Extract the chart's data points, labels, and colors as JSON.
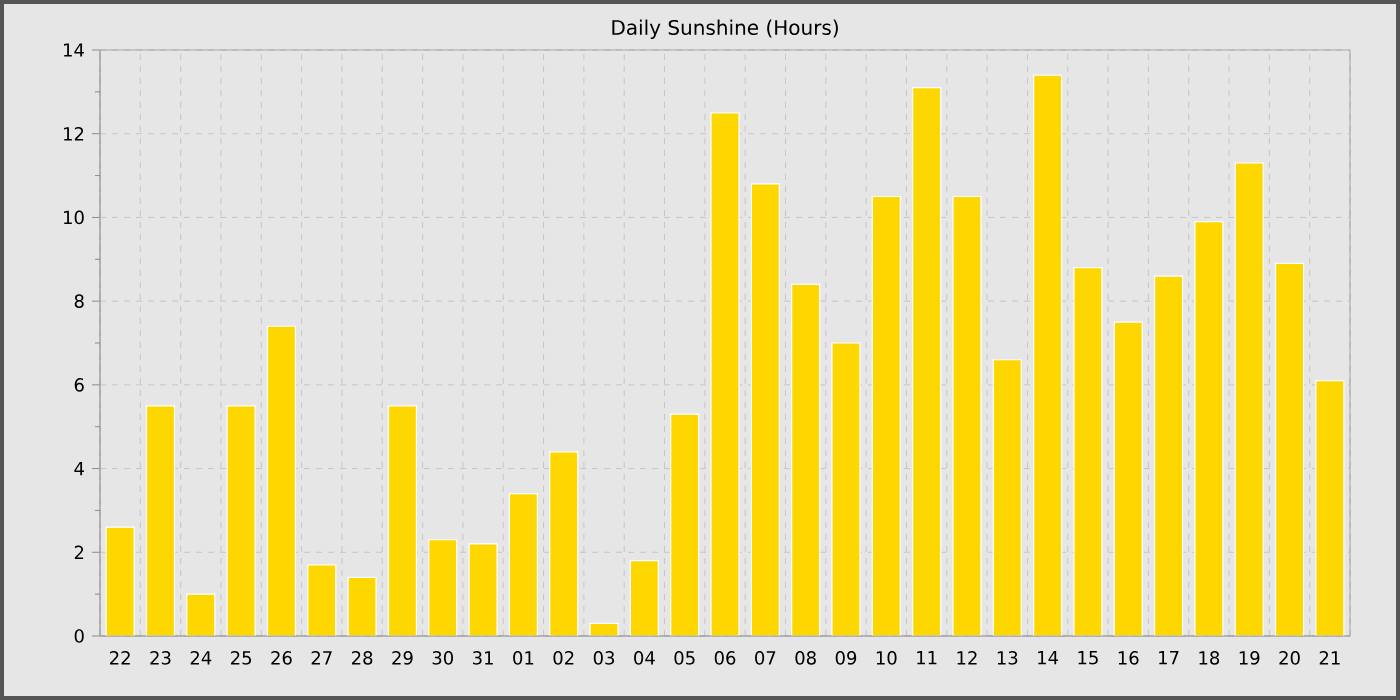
{
  "chart_data": {
    "type": "bar",
    "title": "Daily Sunshine (Hours)",
    "categories": [
      "22",
      "23",
      "24",
      "25",
      "26",
      "27",
      "28",
      "29",
      "30",
      "31",
      "01",
      "02",
      "03",
      "04",
      "05",
      "06",
      "07",
      "08",
      "09",
      "10",
      "11",
      "12",
      "13",
      "14",
      "15",
      "16",
      "17",
      "18",
      "19",
      "20",
      "21"
    ],
    "values": [
      2.6,
      5.5,
      1.0,
      5.5,
      7.4,
      1.7,
      1.4,
      5.5,
      2.3,
      2.2,
      3.4,
      4.4,
      0.3,
      1.8,
      5.3,
      12.5,
      10.8,
      8.4,
      7.0,
      10.5,
      13.1,
      10.5,
      6.6,
      13.4,
      8.8,
      7.5,
      8.6,
      9.9,
      11.3,
      8.9,
      6.1
    ],
    "color": "#ffd700",
    "ylim": [
      0,
      14
    ],
    "yticks": [
      0,
      {
        "value": 1,
        "label": null
      },
      2,
      {
        "value": 3,
        "label": null
      },
      4,
      {
        "value": 5,
        "label": null
      },
      6,
      {
        "value": 7,
        "label": null
      },
      8,
      {
        "value": 9,
        "label": null
      },
      10,
      {
        "value": 11,
        "label": null
      },
      12,
      {
        "value": 13,
        "label": null
      },
      14
    ],
    "grid": true
  }
}
